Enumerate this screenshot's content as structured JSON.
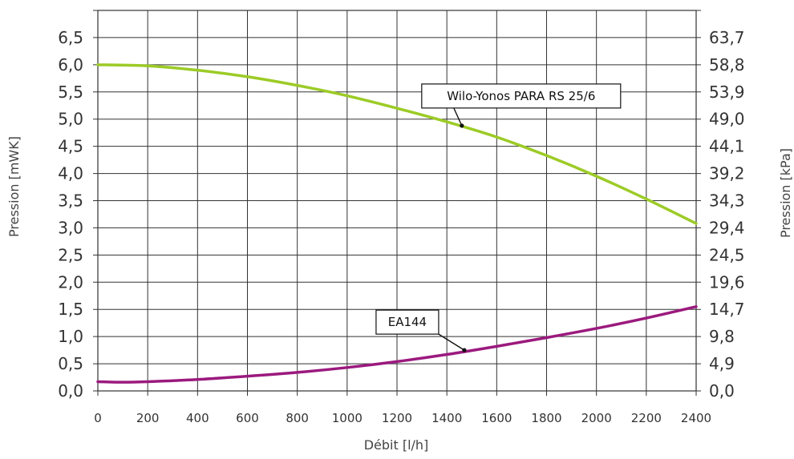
{
  "chart_data": {
    "type": "line",
    "xlabel": "Débit [l/h]",
    "ylabel_left": "Pression [mWK]",
    "ylabel_right": "Pression [kPa]",
    "xlim": [
      0,
      2400
    ],
    "ylim": [
      0,
      7.0
    ],
    "grid": true,
    "x_ticks": [
      "0",
      "200",
      "400",
      "600",
      "800",
      "1000",
      "1200",
      "1400",
      "1600",
      "1800",
      "2000",
      "2200",
      "2400"
    ],
    "y_ticks_left": [
      "0,0",
      "0,5",
      "1,0",
      "1,5",
      "2,0",
      "2,5",
      "3,0",
      "3,5",
      "4,0",
      "4,5",
      "5,0",
      "5,5",
      "6,0",
      "6,5"
    ],
    "y_ticks_right": [
      "0,0",
      "4,9",
      "9,8",
      "14,7",
      "19,6",
      "24,5",
      "29,4",
      "34,3",
      "39,2",
      "44,1",
      "49,0",
      "53,9",
      "58,8",
      "63,7"
    ],
    "series": [
      {
        "name": "Wilo-Yonos PARA RS 25/6",
        "color": "#9ccb26",
        "x": [
          0,
          200,
          400,
          600,
          800,
          1000,
          1200,
          1400,
          1600,
          1800,
          2000,
          2200,
          2400
        ],
        "y": [
          6.0,
          5.98,
          5.9,
          5.78,
          5.62,
          5.43,
          5.2,
          4.95,
          4.67,
          4.33,
          3.95,
          3.53,
          3.08
        ],
        "callout_at": [
          1460,
          4.88
        ]
      },
      {
        "name": "EA144",
        "color": "#9b1a7e",
        "x": [
          0,
          100,
          200,
          400,
          600,
          800,
          1000,
          1200,
          1400,
          1600,
          1800,
          2000,
          2200,
          2400
        ],
        "y": [
          0.17,
          0.16,
          0.17,
          0.21,
          0.27,
          0.34,
          0.43,
          0.54,
          0.67,
          0.82,
          0.98,
          1.15,
          1.34,
          1.55
        ],
        "callout_at": [
          1470,
          0.75
        ]
      }
    ]
  }
}
